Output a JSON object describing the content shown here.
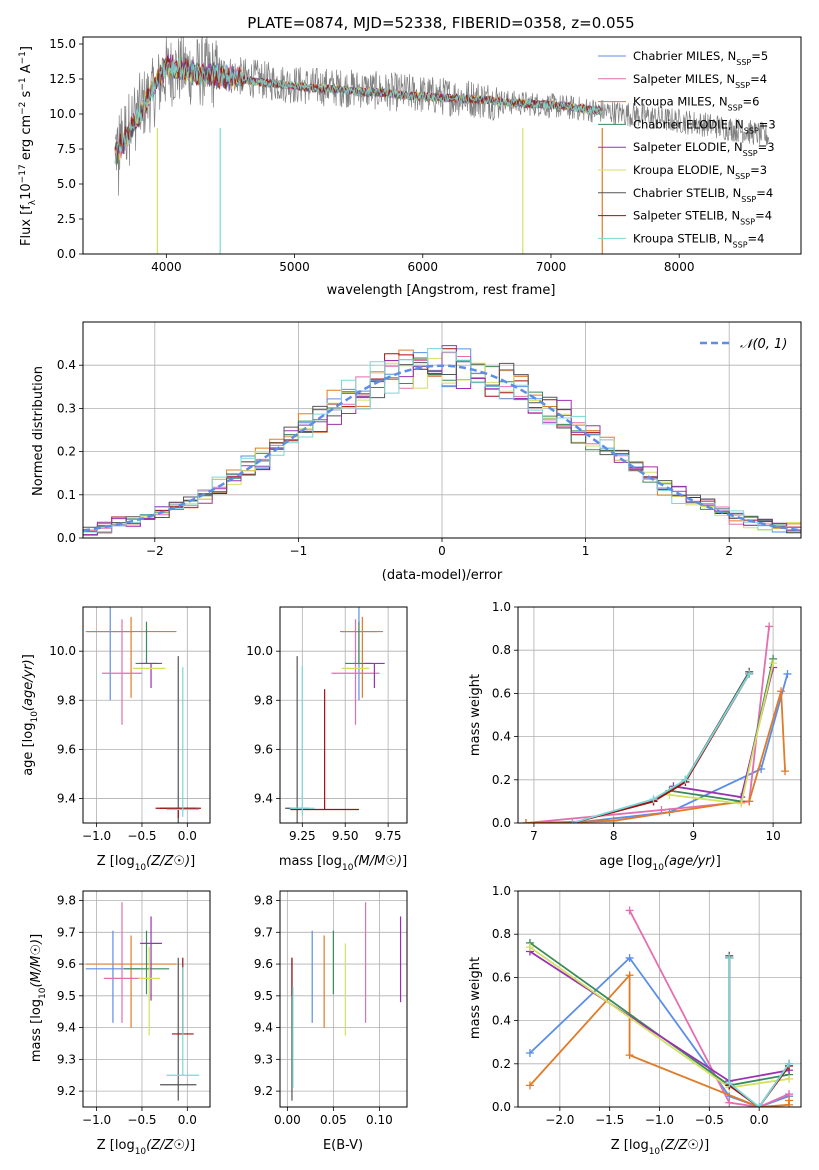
{
  "colors": {
    "chabrier_miles": "#5b8ee6",
    "salpeter_miles": "#e46fb0",
    "kroupa_miles": "#e07b28",
    "chabrier_elodie": "#3a8a5b",
    "salpeter_elodie": "#9932b0",
    "kroupa_elodie": "#d4e060",
    "chabrier_stelib": "#555555",
    "salpeter_stelib": "#a01010",
    "kroupa_stelib": "#7ad7d8",
    "data": "#808080"
  },
  "legend": [
    {
      "key": "chabrier_miles",
      "label": "Chabrier MILES, N",
      "sub": "SSP",
      "n": "=5"
    },
    {
      "key": "salpeter_miles",
      "label": "Salpeter MILES, N",
      "sub": "SSP",
      "n": "=4"
    },
    {
      "key": "kroupa_miles",
      "label": "Kroupa MILES, N",
      "sub": "SSP",
      "n": "=6"
    },
    {
      "key": "chabrier_elodie",
      "label": "Chabrier ELODIE, N",
      "sub": "SSP",
      "n": "=3"
    },
    {
      "key": "salpeter_elodie",
      "label": "Salpeter ELODIE, N",
      "sub": "SSP",
      "n": "=3"
    },
    {
      "key": "kroupa_elodie",
      "label": "Kroupa ELODIE, N",
      "sub": "SSP",
      "n": "=3"
    },
    {
      "key": "chabrier_stelib",
      "label": "Chabrier STELIB, N",
      "sub": "SSP",
      "n": "=4"
    },
    {
      "key": "salpeter_stelib",
      "label": "Salpeter STELIB, N",
      "sub": "SSP",
      "n": "=4"
    },
    {
      "key": "kroupa_stelib",
      "label": "Kroupa STELIB, N",
      "sub": "SSP",
      "n": "=4"
    }
  ],
  "chart_data": [
    {
      "id": "spectrum",
      "type": "line",
      "title": "PLATE=0874, MJD=52338, FIBERID=0358, z=0.055",
      "xlabel": "wavelength [Angstrom, rest frame]",
      "ylabel": "Flux [f",
      "ylabel_parts": [
        "Flux [f",
        "λ",
        "10",
        "−17",
        " erg cm",
        "−2",
        " s",
        "−1",
        " A",
        "−1",
        "]"
      ],
      "xlim": [
        3350,
        8950
      ],
      "ylim": [
        0,
        15.5
      ],
      "xticks": [
        4000,
        5000,
        6000,
        7000,
        8000
      ],
      "yticks": [
        0.0,
        2.5,
        5.0,
        7.5,
        10.0,
        12.5,
        15.0
      ],
      "grid": false,
      "legend_position": "top-right",
      "data_envelope": {
        "x": [
          3600,
          3700,
          3800,
          3900,
          4000,
          4100,
          4300,
          4500,
          4700,
          4900,
          5100,
          5300,
          5500,
          5700,
          5900,
          6100,
          6300,
          6500,
          6700,
          6900,
          7100,
          7300,
          7500,
          7700,
          7900,
          8100,
          8300,
          8500,
          8700
        ],
        "y": [
          7.5,
          9.0,
          10.5,
          11.5,
          13.0,
          13.2,
          13.0,
          12.8,
          12.5,
          12.2,
          12.0,
          11.9,
          11.8,
          11.6,
          11.5,
          11.3,
          11.2,
          11.0,
          10.8,
          10.7,
          10.5,
          10.3,
          10.1,
          9.9,
          9.6,
          9.4,
          9.1,
          8.8,
          8.4
        ]
      },
      "model": {
        "x": [
          3600,
          3700,
          3800,
          3900,
          4000,
          4100,
          4300,
          4500,
          4700,
          4900,
          5100,
          5300,
          5500,
          5700,
          5900,
          6100,
          6300,
          6500,
          6700,
          6900,
          7100,
          7300,
          7400
        ],
        "y": [
          7.0,
          8.5,
          10.0,
          12.0,
          13.5,
          13.2,
          12.8,
          12.6,
          12.3,
          12.1,
          11.9,
          11.8,
          11.6,
          11.5,
          11.3,
          11.2,
          11.1,
          11.0,
          10.8,
          10.7,
          10.6,
          10.3,
          10.2
        ]
      }
    },
    {
      "id": "residuals",
      "type": "line",
      "xlabel": "(data-model)/error",
      "ylabel": "Normed distribution",
      "xlim": [
        -2.5,
        2.5
      ],
      "ylim": [
        0,
        0.5
      ],
      "xticks": [
        -2,
        -1,
        0,
        1,
        2
      ],
      "yticks": [
        0.0,
        0.1,
        0.2,
        0.3,
        0.4
      ],
      "grid": true,
      "legend_label": "𝒩(0, 1)",
      "legend_position": "top-right",
      "bin_width": 0.1,
      "hist_series_order": [
        "kroupa_miles",
        "salpeter_miles",
        "chabrier_miles",
        "salpeter_stelib",
        "chabrier_elodie",
        "kroupa_elodie",
        "salpeter_elodie",
        "chabrier_stelib",
        "kroupa_stelib"
      ]
    },
    {
      "id": "age_vs_Z",
      "type": "scatter",
      "xlabel": "Z [log10(Z/Z☉)]",
      "ylabel": "age  [log10(age/yr)]",
      "xlim": [
        -1.15,
        0.25
      ],
      "ylim": [
        9.3,
        10.18
      ],
      "xticks": [
        -1.0,
        -0.5,
        0.0
      ],
      "yticks": [
        9.4,
        9.6,
        9.8,
        10.0
      ],
      "grid": true,
      "points": [
        {
          "key": "chabrier_miles",
          "x": -0.85,
          "xerr": 0.25,
          "y": 10.08,
          "yerr": [
            0.28,
            0.12
          ]
        },
        {
          "key": "salpeter_miles",
          "x": -0.72,
          "xerr": 0.22,
          "y": 9.91,
          "yerr": [
            0.21,
            0.22
          ]
        },
        {
          "key": "kroupa_miles",
          "x": -0.62,
          "xerr": 0.5,
          "y": 10.08,
          "yerr": [
            0.27,
            0.06
          ]
        },
        {
          "key": "chabrier_elodie",
          "x": -0.45,
          "xerr": 0.12,
          "y": 9.95,
          "yerr": [
            0.0,
            0.17
          ]
        },
        {
          "key": "salpeter_elodie",
          "x": -0.4,
          "xerr": 0.12,
          "y": 9.95,
          "yerr": [
            0.1,
            0.0
          ]
        },
        {
          "key": "kroupa_elodie",
          "x": -0.42,
          "xerr": 0.18,
          "y": 9.93,
          "yerr": [
            0.0,
            0.0
          ]
        },
        {
          "key": "chabrier_stelib",
          "x": -0.1,
          "xerr": 0.2,
          "y": 9.36,
          "yerr": [
            0.06,
            0.62
          ]
        },
        {
          "key": "salpeter_stelib",
          "x": -0.1,
          "xerr": 0.25,
          "y": 9.36,
          "yerr": [
            0.04,
            0.0
          ]
        },
        {
          "key": "kroupa_stelib",
          "x": -0.05,
          "xerr": 0.18,
          "y": 9.355,
          "yerr": [
            0.03,
            0.58
          ]
        }
      ]
    },
    {
      "id": "age_vs_mass",
      "type": "scatter",
      "xlabel": "mass [log10(M/M☉)]",
      "ylabel": "",
      "xlim": [
        9.12,
        9.86
      ],
      "ylim": [
        9.3,
        10.18
      ],
      "xticks": [
        9.25,
        9.5,
        9.75
      ],
      "yticks": [
        9.4,
        9.6,
        9.8,
        10.0
      ],
      "grid": true,
      "points": [
        {
          "key": "chabrier_miles",
          "x": 9.58,
          "xerr": 0.11,
          "y": 10.08,
          "yerr": [
            0.28,
            0.12
          ]
        },
        {
          "key": "salpeter_miles",
          "x": 9.56,
          "xerr": 0.14,
          "y": 9.91,
          "yerr": [
            0.21,
            0.22
          ]
        },
        {
          "key": "kroupa_miles",
          "x": 9.6,
          "xerr": 0.12,
          "y": 10.08,
          "yerr": [
            0.27,
            0.06
          ]
        },
        {
          "key": "chabrier_elodie",
          "x": 9.58,
          "xerr": 0.08,
          "y": 9.95,
          "yerr": [
            0.0,
            0.17
          ]
        },
        {
          "key": "salpeter_elodie",
          "x": 9.67,
          "xerr": 0.06,
          "y": 9.95,
          "yerr": [
            0.1,
            0.0
          ]
        },
        {
          "key": "kroupa_elodie",
          "x": 9.56,
          "xerr": 0.08,
          "y": 9.93,
          "yerr": [
            0.0,
            0.0
          ]
        },
        {
          "key": "chabrier_stelib",
          "x": 9.22,
          "xerr": 0.07,
          "y": 9.36,
          "yerr": [
            0.06,
            0.62
          ]
        },
        {
          "key": "salpeter_stelib",
          "x": 9.38,
          "xerr": 0.2,
          "y": 9.355,
          "yerr": [
            0.0,
            0.49
          ]
        },
        {
          "key": "kroupa_stelib",
          "x": 9.25,
          "xerr": 0.07,
          "y": 9.36,
          "yerr": [
            0.03,
            0.58
          ]
        }
      ]
    },
    {
      "id": "mass_weight_vs_age",
      "type": "line",
      "xlabel": "age  [log10(age/yr)]",
      "ylabel": "mass weight",
      "xlim": [
        6.8,
        10.35
      ],
      "ylim": [
        0,
        1.0
      ],
      "xticks": [
        7,
        8,
        9,
        10
      ],
      "yticks": [
        0.0,
        0.2,
        0.4,
        0.6,
        0.8,
        1.0
      ],
      "grid": true,
      "series": [
        {
          "key": "chabrier_miles",
          "x": [
            7.48,
            8.7,
            9.85,
            10.18
          ],
          "y": [
            0.0,
            0.05,
            0.25,
            0.69
          ]
        },
        {
          "key": "salpeter_miles",
          "x": [
            6.9,
            8.6,
            9.7,
            9.95
          ],
          "y": [
            0.0,
            0.06,
            0.1,
            0.91
          ]
        },
        {
          "key": "kroupa_miles",
          "x": [
            6.9,
            8.0,
            9.6,
            9.7,
            10.1,
            10.15
          ],
          "y": [
            0.0,
            0.01,
            0.1,
            0.1,
            0.61,
            0.24
          ]
        },
        {
          "key": "chabrier_elodie",
          "x": [
            8.7,
            9.6,
            10.0
          ],
          "y": [
            0.15,
            0.1,
            0.76
          ]
        },
        {
          "key": "salpeter_elodie",
          "x": [
            8.75,
            9.6,
            10.0
          ],
          "y": [
            0.17,
            0.12,
            0.72
          ]
        },
        {
          "key": "kroupa_elodie",
          "x": [
            8.7,
            9.6,
            10.0
          ],
          "y": [
            0.13,
            0.09,
            0.74
          ]
        },
        {
          "key": "chabrier_stelib",
          "x": [
            7.48,
            8.5,
            8.9,
            9.7
          ],
          "y": [
            0.0,
            0.1,
            0.2,
            0.7
          ]
        },
        {
          "key": "salpeter_stelib",
          "x": [
            7.48,
            8.5,
            8.9,
            9.7
          ],
          "y": [
            0.0,
            0.1,
            0.19,
            0.69
          ]
        },
        {
          "key": "kroupa_stelib",
          "x": [
            7.48,
            8.5,
            8.9,
            9.7
          ],
          "y": [
            0.0,
            0.11,
            0.2,
            0.69
          ]
        }
      ]
    },
    {
      "id": "mass_vs_Z",
      "type": "scatter",
      "xlabel": "Z [log10(Z/Z☉)]",
      "ylabel": "mass [log10(M/M☉)]",
      "xlim": [
        -1.15,
        0.25
      ],
      "ylim": [
        9.15,
        9.83
      ],
      "xticks": [
        -1.0,
        -0.5,
        0.0
      ],
      "yticks": [
        9.2,
        9.3,
        9.4,
        9.5,
        9.6,
        9.7,
        9.8
      ],
      "grid": true,
      "points": [
        {
          "key": "chabrier_miles",
          "x": -0.82,
          "xerr": 0.3,
          "y": 9.585,
          "yerr": [
            0.17,
            0.12
          ]
        },
        {
          "key": "salpeter_miles",
          "x": -0.72,
          "xerr": 0.2,
          "y": 9.555,
          "yerr": [
            0.14,
            0.24
          ]
        },
        {
          "key": "kroupa_miles",
          "x": -0.62,
          "xerr": 0.5,
          "y": 9.6,
          "yerr": [
            0.2,
            0.09
          ]
        },
        {
          "key": "chabrier_elodie",
          "x": -0.45,
          "xerr": 0.25,
          "y": 9.585,
          "yerr": [
            0.08,
            0.12
          ]
        },
        {
          "key": "salpeter_elodie",
          "x": -0.4,
          "xerr": 0.12,
          "y": 9.665,
          "yerr": [
            0.18,
            0.085
          ]
        },
        {
          "key": "kroupa_elodie",
          "x": -0.42,
          "xerr": 0.12,
          "y": 9.555,
          "yerr": [
            0.18,
            0.1
          ]
        },
        {
          "key": "chabrier_stelib",
          "x": -0.1,
          "xerr": 0.2,
          "y": 9.22,
          "yerr": [
            0.05,
            0.4
          ]
        },
        {
          "key": "salpeter_stelib",
          "x": -0.05,
          "xerr": 0.12,
          "y": 9.38,
          "yerr": [
            0.0,
            0.24
          ]
        },
        {
          "key": "kroupa_stelib",
          "x": -0.05,
          "xerr": 0.18,
          "y": 9.25,
          "yerr": [
            0.0,
            0.34
          ]
        }
      ]
    },
    {
      "id": "mass_vs_ebv",
      "type": "scatter",
      "xlabel": "E(B-V)",
      "ylabel": "",
      "xlim": [
        -0.008,
        0.13
      ],
      "ylim": [
        9.15,
        9.83
      ],
      "xticks": [
        0.0,
        0.05,
        0.1
      ],
      "yticks": [
        9.2,
        9.3,
        9.4,
        9.5,
        9.6,
        9.7,
        9.8
      ],
      "grid": true,
      "points": [
        {
          "key": "chabrier_stelib",
          "x": 0.005,
          "y": 9.22,
          "yerr": [
            0.05,
            0.4
          ]
        },
        {
          "key": "salpeter_stelib",
          "x": 0.005,
          "y": 9.5,
          "yerr": [
            0.0,
            0.12
          ]
        },
        {
          "key": "kroupa_stelib",
          "x": 0.006,
          "y": 9.36,
          "yerr": [
            0.15,
            0.17
          ]
        },
        {
          "key": "chabrier_miles",
          "x": 0.027,
          "y": 9.585,
          "yerr": [
            0.17,
            0.12
          ]
        },
        {
          "key": "kroupa_miles",
          "x": 0.04,
          "y": 9.6,
          "yerr": [
            0.2,
            0.09
          ]
        },
        {
          "key": "chabrier_elodie",
          "x": 0.05,
          "y": 9.585,
          "yerr": [
            0.08,
            0.12
          ]
        },
        {
          "key": "kroupa_elodie",
          "x": 0.063,
          "y": 9.555,
          "yerr": [
            0.18,
            0.11
          ]
        },
        {
          "key": "salpeter_miles",
          "x": 0.085,
          "y": 9.555,
          "yerr": [
            0.14,
            0.24
          ]
        },
        {
          "key": "salpeter_elodie",
          "x": 0.123,
          "y": 9.615,
          "yerr": [
            0.135,
            0.135
          ]
        }
      ]
    },
    {
      "id": "mass_weight_vs_Z",
      "type": "line",
      "xlabel": "Z [log10(Z/Z☉)]",
      "ylabel": "mass weight",
      "xlim": [
        -2.42,
        0.42
      ],
      "ylim": [
        0,
        1.0
      ],
      "xticks": [
        -2.0,
        -1.5,
        -1.0,
        -0.5,
        0.0
      ],
      "yticks": [
        0.0,
        0.2,
        0.4,
        0.6,
        0.8,
        1.0
      ],
      "grid": true,
      "series": [
        {
          "key": "chabrier_miles",
          "x": [
            -2.3,
            -1.3,
            -0.3,
            0.0,
            0.3
          ],
          "y": [
            0.25,
            0.69,
            0.05,
            0.0,
            0.05
          ]
        },
        {
          "key": "salpeter_miles",
          "x": [
            -1.3,
            -0.3,
            0.0,
            0.3
          ],
          "y": [
            0.91,
            0.02,
            0.0,
            0.06
          ]
        },
        {
          "key": "kroupa_miles",
          "x": [
            -2.3,
            -1.3,
            -1.3,
            0.0,
            0.3,
            0.3
          ],
          "y": [
            0.1,
            0.61,
            0.24,
            0.0,
            0.01,
            0.03
          ]
        },
        {
          "key": "chabrier_elodie",
          "x": [
            -2.3,
            -0.3,
            0.3
          ],
          "y": [
            0.76,
            0.1,
            0.15
          ]
        },
        {
          "key": "salpeter_elodie",
          "x": [
            -2.3,
            -0.3,
            0.3
          ],
          "y": [
            0.72,
            0.12,
            0.17
          ]
        },
        {
          "key": "kroupa_elodie",
          "x": [
            -2.3,
            -0.3,
            0.3
          ],
          "y": [
            0.74,
            0.09,
            0.13
          ]
        },
        {
          "key": "chabrier_stelib",
          "x": [
            -0.3,
            -0.3,
            0.0,
            0.3
          ],
          "y": [
            0.7,
            0.1,
            0.0,
            0.2
          ]
        },
        {
          "key": "salpeter_stelib",
          "x": [
            -0.3,
            -0.3,
            0.0,
            0.3
          ],
          "y": [
            0.69,
            0.1,
            0.0,
            0.19
          ]
        },
        {
          "key": "kroupa_stelib",
          "x": [
            -0.3,
            -0.3,
            0.0,
            0.3
          ],
          "y": [
            0.69,
            0.11,
            0.0,
            0.2
          ]
        }
      ]
    }
  ]
}
